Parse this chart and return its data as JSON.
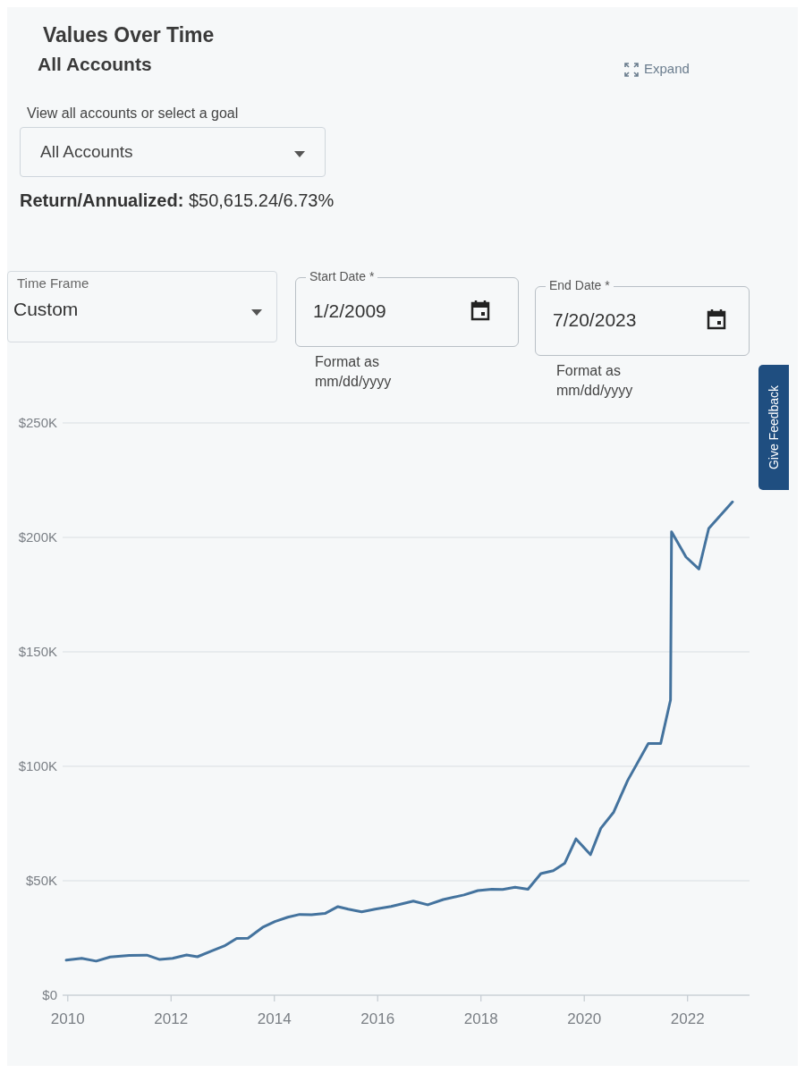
{
  "chart_data": {
    "type": "line",
    "title": "Values Over Time",
    "subtitle": "All Accounts",
    "x": [
      2009.97,
      2010.27,
      2010.55,
      2010.82,
      2011.19,
      2011.53,
      2011.78,
      2012.03,
      2012.3,
      2012.51,
      2012.78,
      2013.03,
      2013.27,
      2013.49,
      2013.77,
      2014.01,
      2014.26,
      2014.49,
      2014.72,
      2014.98,
      2015.23,
      2015.43,
      2015.69,
      2015.95,
      2016.26,
      2016.69,
      2016.97,
      2017.27,
      2017.67,
      2017.94,
      2018.21,
      2018.42,
      2018.66,
      2018.91,
      2019.16,
      2019.4,
      2019.62,
      2019.84,
      2020.12,
      2020.32,
      2020.57,
      2020.84,
      2021.24,
      2021.48,
      2021.67,
      2021.69,
      2021.97,
      2022.22,
      2022.41,
      2022.87
    ],
    "series": [
      {
        "color": "#44739e",
        "values": [
          15300,
          16100,
          14900,
          16700,
          17400,
          17500,
          15600,
          16100,
          17600,
          16800,
          19300,
          21500,
          24800,
          24900,
          29600,
          32200,
          34100,
          35300,
          35200,
          35700,
          38700,
          37600,
          36400,
          37600,
          38800,
          41100,
          39500,
          41800,
          43800,
          45700,
          46300,
          46200,
          47200,
          46300,
          53100,
          54400,
          57600,
          68300,
          61400,
          72900,
          80000,
          93800,
          110000,
          110000,
          129000,
          202400,
          191400,
          186200,
          203900,
          215500
        ]
      }
    ],
    "xlim": [
      2009.9,
      2023.2
    ],
    "xticks": [
      2010,
      2012,
      2014,
      2016,
      2018,
      2020,
      2022
    ],
    "ylim": [
      0,
      250000
    ],
    "yticks": [
      {
        "value": 0,
        "label": "$0"
      },
      {
        "value": 50000,
        "label": "$50K"
      },
      {
        "value": 100000,
        "label": "$100K"
      },
      {
        "value": 150000,
        "label": "$150K"
      },
      {
        "value": 200000,
        "label": "$200K"
      },
      {
        "value": 250000,
        "label": "$250K"
      }
    ],
    "grid": "y",
    "annotations": [
      "View all accounts or select a goal",
      "All Accounts",
      "Return/Annualized: $50,615.24/6.73%",
      "Time Frame",
      "Custom",
      "Start Date *",
      "1/2/2009",
      "Format as mm/dd/yyyy",
      "End Date *",
      "7/20/2023",
      "Format as mm/dd/yyyy",
      "Expand",
      "Give Feedback"
    ]
  }
}
